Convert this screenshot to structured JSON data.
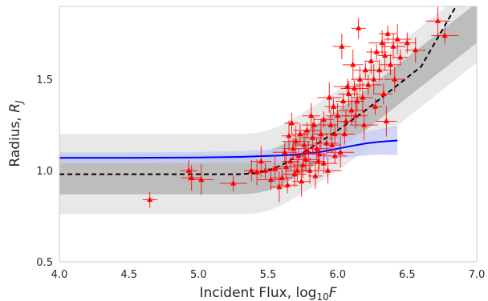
{
  "chart_data": {
    "type": "scatter",
    "title": "",
    "xlabel_main": "Incident Flux, log",
    "xlabel_sub": "10",
    "xlabel_var": "F",
    "ylabel_main": "Radius, ",
    "ylabel_var": "R",
    "ylabel_sub": "J",
    "xlim": [
      4.0,
      7.0
    ],
    "ylim": [
      0.5,
      1.9
    ],
    "xticks": [
      {
        "value": 4.0,
        "label": "4.0"
      },
      {
        "value": 4.5,
        "label": "4.5"
      },
      {
        "value": 5.0,
        "label": "5.0"
      },
      {
        "value": 5.5,
        "label": "5.5"
      },
      {
        "value": 6.0,
        "label": "6.0"
      },
      {
        "value": 6.5,
        "label": "6.5"
      },
      {
        "value": 7.0,
        "label": "7.0"
      }
    ],
    "yticks": [
      {
        "value": 0.5,
        "label": "0.5"
      },
      {
        "value": 1.0,
        "label": "1.0"
      },
      {
        "value": 1.5,
        "label": "1.5"
      }
    ],
    "grid": false,
    "colors": {
      "points": "#ff0000",
      "outer_band": "#e8e8e8",
      "inner_band": "#bdbdbd",
      "blue_band": "#c8cdf4",
      "blue_line": "#0000ff",
      "dashed_line": "#000000",
      "frame": "#cccccc"
    },
    "bands": {
      "x": [
        4.0,
        5.0,
        5.3,
        5.4,
        5.5,
        5.6,
        5.7,
        5.8,
        6.0,
        6.2,
        6.4,
        6.6,
        6.8,
        7.0
      ],
      "center": [
        0.98,
        0.98,
        0.98,
        0.985,
        1.0,
        1.03,
        1.075,
        1.12,
        1.22,
        1.33,
        1.45,
        1.57,
        1.69,
        1.81
      ],
      "inner_halfwidth": 0.11,
      "outer_halfwidth": 0.22
    },
    "dashed_model": {
      "x": [
        4.0,
        5.3,
        5.4,
        5.5,
        5.6,
        5.7,
        5.8,
        6.0,
        6.2,
        6.4,
        6.6,
        6.85
      ],
      "y": [
        0.98,
        0.98,
        0.985,
        1.0,
        1.03,
        1.075,
        1.12,
        1.22,
        1.33,
        1.45,
        1.57,
        1.9
      ]
    },
    "blue_model": {
      "x": [
        4.0,
        4.5,
        5.0,
        5.3,
        5.5,
        5.6,
        5.7,
        5.8,
        5.9,
        6.0,
        6.1,
        6.2,
        6.3,
        6.43
      ],
      "y": [
        1.07,
        1.07,
        1.072,
        1.075,
        1.08,
        1.083,
        1.088,
        1.095,
        1.105,
        1.12,
        1.135,
        1.148,
        1.158,
        1.165
      ],
      "band_halfwidth": [
        0.03,
        0.03,
        0.03,
        0.032,
        0.034,
        0.036,
        0.038,
        0.042,
        0.048,
        0.055,
        0.06,
        0.065,
        0.07,
        0.08
      ]
    },
    "points": [
      {
        "x": 4.65,
        "y": 0.84
      },
      {
        "x": 4.93,
        "y": 1.0
      },
      {
        "x": 4.95,
        "y": 0.96
      },
      {
        "x": 5.02,
        "y": 0.95
      },
      {
        "x": 5.25,
        "y": 0.93
      },
      {
        "x": 5.38,
        "y": 1.0
      },
      {
        "x": 5.42,
        "y": 0.99
      },
      {
        "x": 5.45,
        "y": 1.05
      },
      {
        "x": 5.48,
        "y": 1.0
      },
      {
        "x": 5.52,
        "y": 0.95
      },
      {
        "x": 5.55,
        "y": 1.01
      },
      {
        "x": 5.58,
        "y": 0.91
      },
      {
        "x": 5.6,
        "y": 0.96
      },
      {
        "x": 5.62,
        "y": 1.1
      },
      {
        "x": 5.63,
        "y": 1.02
      },
      {
        "x": 5.65,
        "y": 1.19
      },
      {
        "x": 5.66,
        "y": 1.05
      },
      {
        "x": 5.68,
        "y": 1.12
      },
      {
        "x": 5.69,
        "y": 0.98
      },
      {
        "x": 5.7,
        "y": 1.16
      },
      {
        "x": 5.72,
        "y": 1.08
      },
      {
        "x": 5.73,
        "y": 1.2
      },
      {
        "x": 5.75,
        "y": 1.03
      },
      {
        "x": 5.76,
        "y": 1.14
      },
      {
        "x": 5.78,
        "y": 1.22
      },
      {
        "x": 5.79,
        "y": 1.1
      },
      {
        "x": 5.8,
        "y": 1.0
      },
      {
        "x": 5.82,
        "y": 1.18
      },
      {
        "x": 5.83,
        "y": 1.25
      },
      {
        "x": 5.85,
        "y": 1.12
      },
      {
        "x": 5.86,
        "y": 1.05
      },
      {
        "x": 5.88,
        "y": 1.2
      },
      {
        "x": 5.9,
        "y": 1.28
      },
      {
        "x": 5.92,
        "y": 1.15
      },
      {
        "x": 5.93,
        "y": 1.0
      },
      {
        "x": 5.95,
        "y": 1.25
      },
      {
        "x": 5.97,
        "y": 1.35
      },
      {
        "x": 5.98,
        "y": 1.2
      },
      {
        "x": 6.0,
        "y": 1.3
      },
      {
        "x": 6.02,
        "y": 1.1
      },
      {
        "x": 6.04,
        "y": 1.38
      },
      {
        "x": 6.06,
        "y": 1.27
      },
      {
        "x": 6.08,
        "y": 1.42
      },
      {
        "x": 6.1,
        "y": 1.33
      },
      {
        "x": 6.12,
        "y": 1.45
      },
      {
        "x": 6.14,
        "y": 1.38
      },
      {
        "x": 6.16,
        "y": 1.5
      },
      {
        "x": 6.18,
        "y": 1.4
      },
      {
        "x": 6.2,
        "y": 1.55
      },
      {
        "x": 6.22,
        "y": 1.47
      },
      {
        "x": 6.24,
        "y": 1.6
      },
      {
        "x": 6.26,
        "y": 1.5
      },
      {
        "x": 6.28,
        "y": 1.65
      },
      {
        "x": 6.3,
        "y": 1.55
      },
      {
        "x": 6.32,
        "y": 1.7
      },
      {
        "x": 6.34,
        "y": 1.63
      },
      {
        "x": 6.36,
        "y": 1.75
      },
      {
        "x": 6.38,
        "y": 1.58
      },
      {
        "x": 6.4,
        "y": 1.68
      },
      {
        "x": 6.43,
        "y": 1.72
      },
      {
        "x": 6.45,
        "y": 1.62
      },
      {
        "x": 6.5,
        "y": 1.7
      },
      {
        "x": 6.56,
        "y": 1.66
      },
      {
        "x": 6.72,
        "y": 1.82
      },
      {
        "x": 6.77,
        "y": 1.74
      },
      {
        "x": 6.15,
        "y": 1.78
      },
      {
        "x": 6.03,
        "y": 1.68
      },
      {
        "x": 6.35,
        "y": 1.27
      },
      {
        "x": 5.98,
        "y": 1.08
      },
      {
        "x": 5.9,
        "y": 1.04
      },
      {
        "x": 5.84,
        "y": 0.97
      },
      {
        "x": 5.74,
        "y": 0.94
      },
      {
        "x": 5.64,
        "y": 0.92
      },
      {
        "x": 5.71,
        "y": 1.0
      },
      {
        "x": 5.77,
        "y": 1.06
      },
      {
        "x": 5.87,
        "y": 1.09
      },
      {
        "x": 5.96,
        "y": 1.14
      },
      {
        "x": 6.05,
        "y": 1.2
      },
      {
        "x": 6.13,
        "y": 1.3
      },
      {
        "x": 6.19,
        "y": 1.25
      },
      {
        "x": 6.27,
        "y": 1.35
      },
      {
        "x": 6.33,
        "y": 1.42
      },
      {
        "x": 6.41,
        "y": 1.5
      },
      {
        "x": 5.94,
        "y": 1.4
      },
      {
        "x": 6.07,
        "y": 1.46
      },
      {
        "x": 5.67,
        "y": 1.26
      },
      {
        "x": 5.81,
        "y": 1.3
      },
      {
        "x": 6.11,
        "y": 1.58
      }
    ]
  }
}
